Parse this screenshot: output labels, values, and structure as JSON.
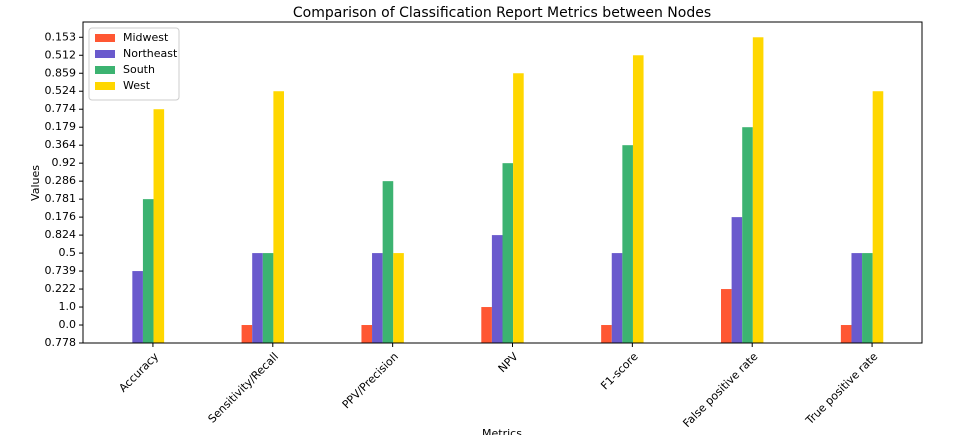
{
  "chart_data": {
    "type": "bar",
    "title": "Comparison of Classification Report Metrics between Nodes",
    "x_label": "Metrics",
    "y_label": "Values",
    "categories": [
      "Accuracy",
      "Sensitivity/Recall",
      "PPV/Precision",
      "NPV",
      "F1-score",
      "False positive rate",
      "True positive rate"
    ],
    "series": [
      {
        "name": "Midwest",
        "color": "#ff5733",
        "values": [
          0,
          1,
          1,
          2,
          1,
          3,
          1
        ]
      },
      {
        "name": "Northeast",
        "color": "#6a5acd",
        "values": [
          4,
          5,
          5,
          6,
          5,
          7,
          5
        ]
      },
      {
        "name": "South",
        "color": "#3cb371",
        "values": [
          8,
          5,
          9,
          10,
          11,
          12,
          5
        ]
      },
      {
        "name": "West",
        "color": "#ffd700",
        "values": [
          13,
          14,
          5,
          15,
          16,
          17,
          14
        ]
      }
    ],
    "ylim": [
      0,
      17.85
    ],
    "yticks": [
      {
        "value": 0,
        "label": "0.778"
      },
      {
        "value": 1,
        "label": "0.0"
      },
      {
        "value": 2,
        "label": "1.0"
      },
      {
        "value": 3,
        "label": "0.222"
      },
      {
        "value": 4,
        "label": "0.739"
      },
      {
        "value": 5,
        "label": "0.5"
      },
      {
        "value": 6,
        "label": "0.824"
      },
      {
        "value": 7,
        "label": "0.176"
      },
      {
        "value": 8,
        "label": "0.781"
      },
      {
        "value": 9,
        "label": "0.286"
      },
      {
        "value": 10,
        "label": "0.92"
      },
      {
        "value": 11,
        "label": "0.364"
      },
      {
        "value": 12,
        "label": "0.179"
      },
      {
        "value": 13,
        "label": "0.774"
      },
      {
        "value": 14,
        "label": "0.524"
      },
      {
        "value": 15,
        "label": "0.859"
      },
      {
        "value": 16,
        "label": "0.512"
      },
      {
        "value": 17,
        "label": "0.153"
      }
    ],
    "legend": "upper left",
    "grid": false
  }
}
